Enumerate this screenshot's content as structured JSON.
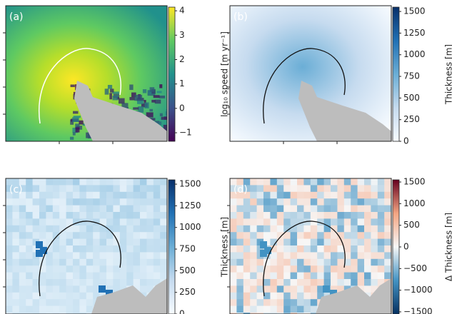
{
  "panels": [
    {
      "label": "(a)",
      "colorbar": {
        "label": "log₁₀ speed [m yr⁻¹]",
        "lim": [
          -1.35,
          4.15
        ],
        "ticks": [
          4,
          3,
          2,
          1,
          0,
          {
            "value": -1,
            "label": "−1"
          }
        ],
        "colors": [
          "#440154",
          "#3b528b",
          "#21918c",
          "#5ec962",
          "#fde725"
        ]
      }
    },
    {
      "label": "(b)",
      "colorbar": {
        "label": "Thickness [m]",
        "lim": [
          0,
          1550
        ],
        "ticks": [
          0,
          250,
          500,
          750,
          1000,
          1250,
          1500
        ],
        "colors": [
          "#f7fbff",
          "#c6dbef",
          "#6baed6",
          "#2171b5",
          "#08306b"
        ]
      }
    },
    {
      "label": "(c)",
      "colorbar": {
        "label": "Thickness [m]",
        "lim": [
          0,
          1550
        ],
        "ticks": [
          0,
          250,
          500,
          750,
          1000,
          1250,
          1500
        ],
        "colors": [
          "#f7fbff",
          "#c6dbef",
          "#6baed6",
          "#2171b5",
          "#08306b"
        ]
      }
    },
    {
      "label": "(d)",
      "colorbar": {
        "label": "Δ Thickness [m]",
        "lim": [
          -1550,
          1550
        ],
        "ticks": [
          {
            "value": -1500,
            "label": "−1500"
          },
          {
            "value": -1000,
            "label": "−1000"
          },
          {
            "value": -500,
            "label": "−500"
          },
          0,
          500,
          1000,
          1500
        ],
        "colors": [
          "#053061",
          "#4393c3",
          "#f7f7f7",
          "#f4a582",
          "#67001f"
        ]
      }
    }
  ]
}
